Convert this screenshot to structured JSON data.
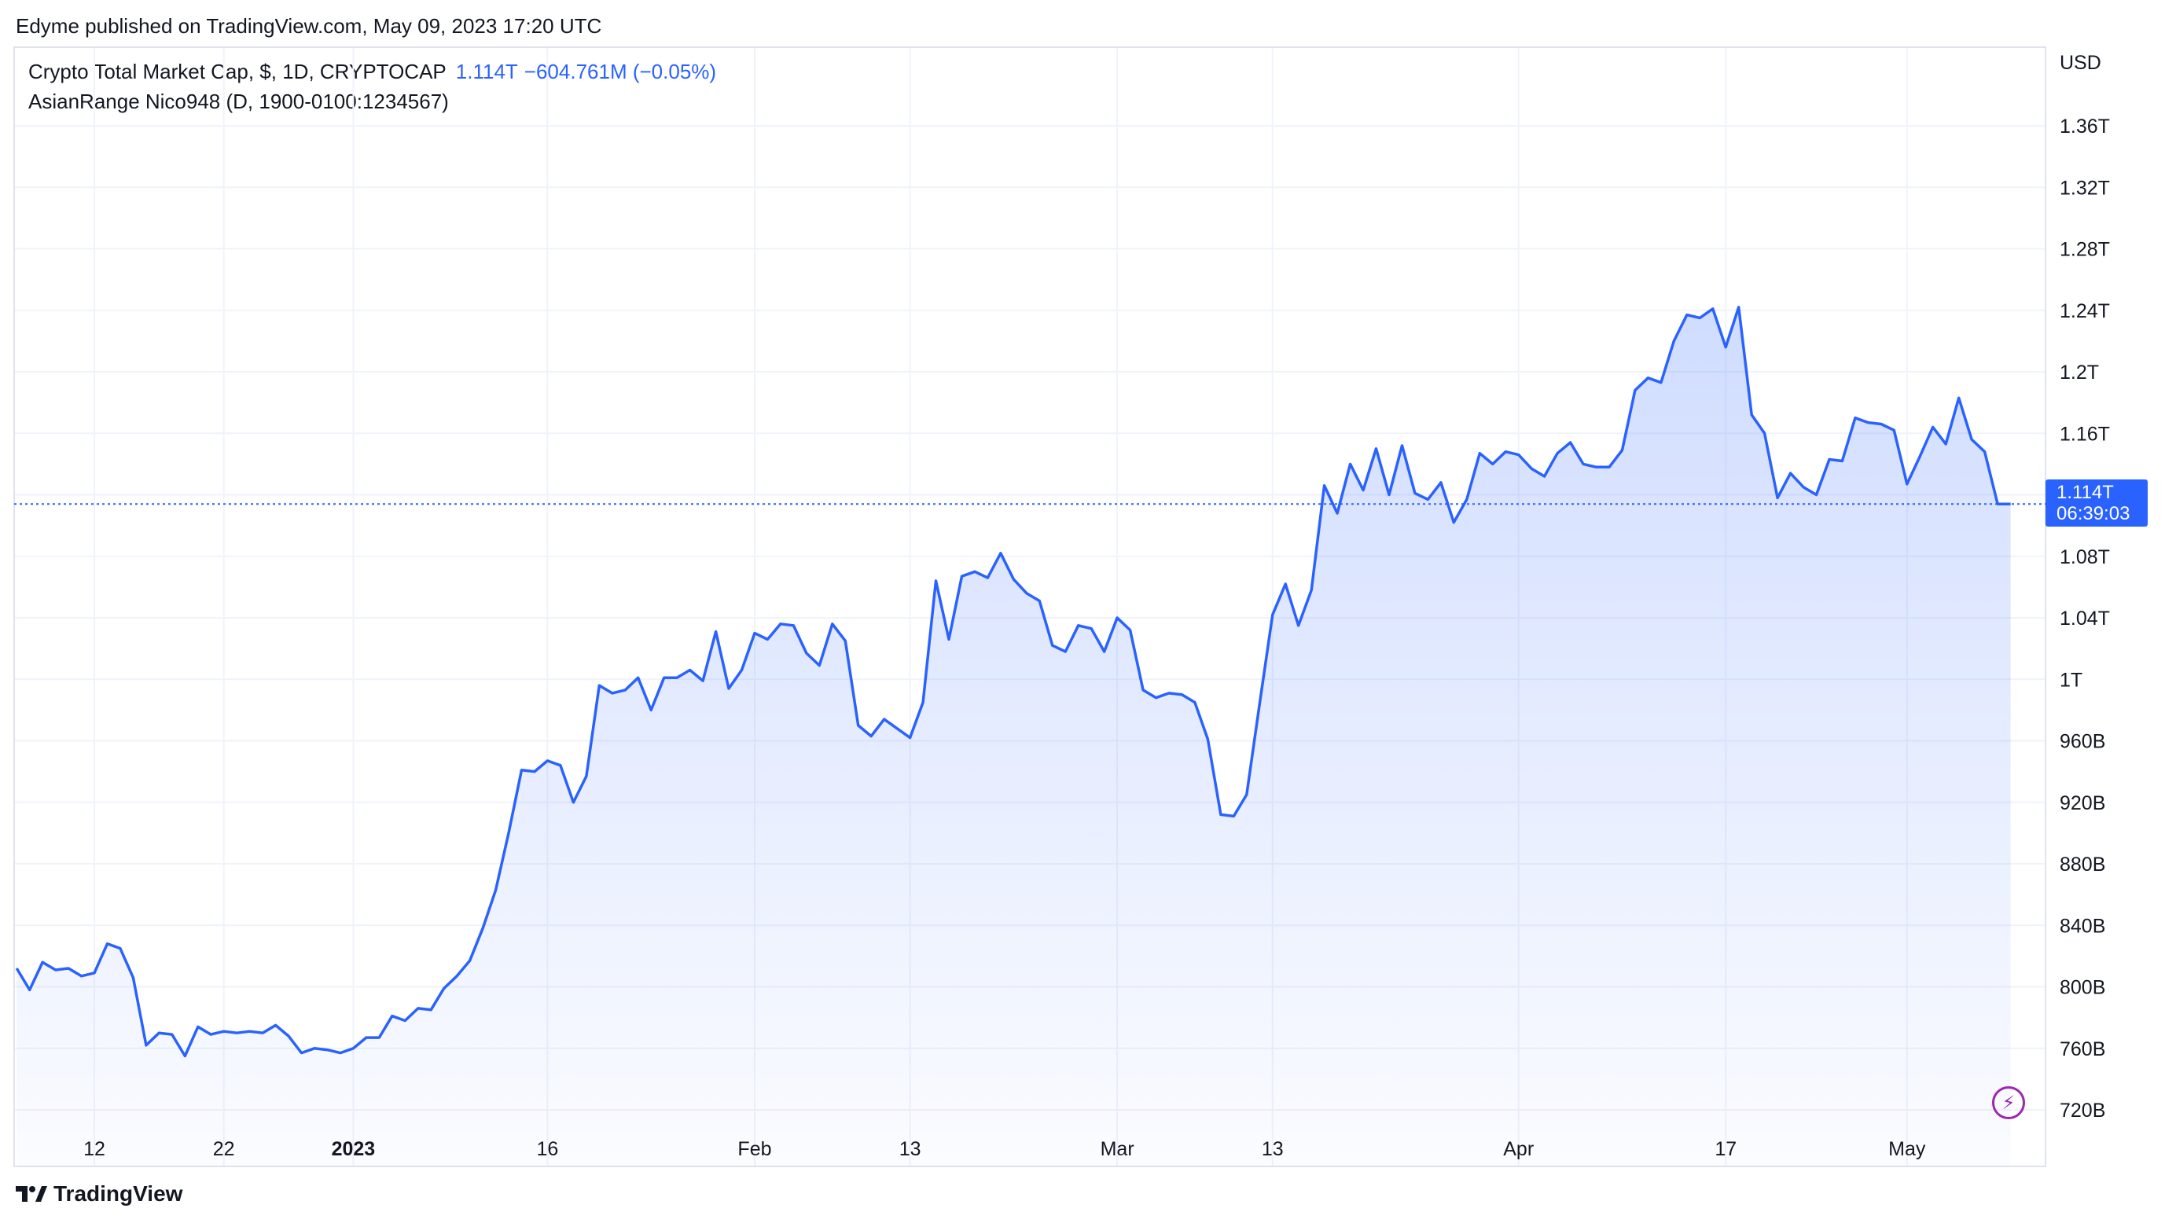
{
  "publisher_line": "Edyme published on TradingView.com, May 09, 2023 17:20 UTC",
  "legend": {
    "symbol": "Crypto Total Market Cap, $, 1D, CRYPTOCAP",
    "value": "1.114T",
    "change": "−604.761M (−0.05%)",
    "indicator": "AsianRange Nico948 (D, 1900-0100:1234567)"
  },
  "price_axis": {
    "unit": "USD",
    "current_price": "1.114T",
    "countdown": "06:39:03"
  },
  "footer": {
    "brand": "TradingView"
  },
  "colors": {
    "line": "#2962ff",
    "badge": "#2962ff",
    "grid": "#f0f3fa",
    "accent": "#9c27b0"
  },
  "icons": {
    "brand_logo": "tradingview-logo-icon",
    "replay": "lightning-icon"
  },
  "chart_data": {
    "type": "area",
    "title": "Crypto Total Market Cap, $, 1D, CRYPTOCAP",
    "xlabel": "",
    "ylabel": "",
    "ylim": [
      700,
      1400
    ],
    "y_unit": "billions USD",
    "grid": true,
    "y_ticks": [
      {
        "value": 720,
        "label": "720B"
      },
      {
        "value": 760,
        "label": "760B"
      },
      {
        "value": 800,
        "label": "800B"
      },
      {
        "value": 840,
        "label": "840B"
      },
      {
        "value": 880,
        "label": "880B"
      },
      {
        "value": 920,
        "label": "920B"
      },
      {
        "value": 960,
        "label": "960B"
      },
      {
        "value": 1000,
        "label": "1T"
      },
      {
        "value": 1040,
        "label": "1.04T"
      },
      {
        "value": 1080,
        "label": "1.08T"
      },
      {
        "value": 1120,
        "label": "1.12T"
      },
      {
        "value": 1160,
        "label": "1.16T"
      },
      {
        "value": 1200,
        "label": "1.2T"
      },
      {
        "value": 1240,
        "label": "1.24T"
      },
      {
        "value": 1280,
        "label": "1.28T"
      },
      {
        "value": 1320,
        "label": "1.32T"
      },
      {
        "value": 1360,
        "label": "1.36T"
      }
    ],
    "x_ticks": [
      {
        "date": "2022-12-12",
        "label": "12",
        "bold": false
      },
      {
        "date": "2022-12-22",
        "label": "22",
        "bold": false
      },
      {
        "date": "2023-01-01",
        "label": "2023",
        "bold": true
      },
      {
        "date": "2023-01-16",
        "label": "16",
        "bold": false
      },
      {
        "date": "2023-02-01",
        "label": "Feb",
        "bold": false
      },
      {
        "date": "2023-02-13",
        "label": "13",
        "bold": false
      },
      {
        "date": "2023-03-01",
        "label": "Mar",
        "bold": false
      },
      {
        "date": "2023-03-13",
        "label": "13",
        "bold": false
      },
      {
        "date": "2023-04-01",
        "label": "Apr",
        "bold": false
      },
      {
        "date": "2023-04-17",
        "label": "17",
        "bold": false
      },
      {
        "date": "2023-05-01",
        "label": "May",
        "bold": false
      }
    ],
    "series": [
      {
        "start_date": "2022-12-06",
        "values": [
          812,
          798,
          816,
          811,
          812,
          807,
          809,
          828,
          825,
          806,
          762,
          770,
          769,
          755,
          774,
          769,
          771,
          770,
          771,
          770,
          775,
          768,
          757,
          760,
          759,
          757,
          760,
          767,
          767,
          781,
          778,
          786,
          785,
          799,
          807,
          817,
          838,
          863,
          900,
          941,
          940,
          947,
          944,
          920,
          937,
          996,
          991,
          993,
          1001,
          980,
          1001,
          1001,
          1006,
          999,
          1031,
          994,
          1006,
          1030,
          1026,
          1036,
          1035,
          1017,
          1009,
          1036,
          1025,
          970,
          963,
          974,
          968,
          962,
          985,
          1064,
          1026,
          1067,
          1070,
          1066,
          1082,
          1065,
          1056,
          1051,
          1022,
          1018,
          1035,
          1033,
          1018,
          1040,
          1032,
          993,
          988,
          991,
          990,
          985,
          961,
          912,
          911,
          925,
          984,
          1042,
          1062,
          1035,
          1058,
          1126,
          1108,
          1140,
          1123,
          1150,
          1120,
          1152,
          1121,
          1117,
          1128,
          1102,
          1117,
          1147,
          1140,
          1148,
          1146,
          1137,
          1132,
          1147,
          1154,
          1140,
          1138,
          1138,
          1149,
          1188,
          1196,
          1193,
          1220,
          1237,
          1235,
          1241,
          1216,
          1242,
          1172,
          1160,
          1118,
          1134,
          1125,
          1120,
          1143,
          1142,
          1170,
          1167,
          1166,
          1162,
          1127,
          1145,
          1164,
          1153,
          1183,
          1156,
          1148,
          1114,
          1114
        ]
      }
    ],
    "last_value": 1114
  }
}
